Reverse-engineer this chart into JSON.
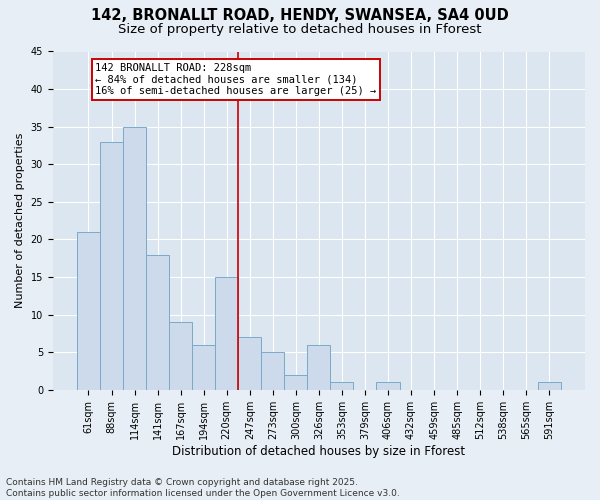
{
  "title1": "142, BRONALLT ROAD, HENDY, SWANSEA, SA4 0UD",
  "title2": "Size of property relative to detached houses in Fforest",
  "xlabel": "Distribution of detached houses by size in Fforest",
  "ylabel": "Number of detached properties",
  "categories": [
    "61sqm",
    "88sqm",
    "114sqm",
    "141sqm",
    "167sqm",
    "194sqm",
    "220sqm",
    "247sqm",
    "273sqm",
    "300sqm",
    "326sqm",
    "353sqm",
    "379sqm",
    "406sqm",
    "432sqm",
    "459sqm",
    "485sqm",
    "512sqm",
    "538sqm",
    "565sqm",
    "591sqm"
  ],
  "values": [
    21,
    33,
    35,
    18,
    9,
    6,
    15,
    7,
    5,
    2,
    6,
    1,
    0,
    1,
    0,
    0,
    0,
    0,
    0,
    0,
    1
  ],
  "bar_color": "#ccdaeb",
  "bar_edge_color": "#7aaac8",
  "vline_x_index": 6.5,
  "vline_color": "#cc0000",
  "annotation_text": "142 BRONALLT ROAD: 228sqm\n← 84% of detached houses are smaller (134)\n16% of semi-detached houses are larger (25) →",
  "annotation_box_facecolor": "#ffffff",
  "annotation_box_edgecolor": "#cc0000",
  "bg_color": "#e8eef5",
  "plot_bg_color": "#dce6f0",
  "grid_color": "#ffffff",
  "ylim": [
    0,
    45
  ],
  "yticks": [
    0,
    5,
    10,
    15,
    20,
    25,
    30,
    35,
    40,
    45
  ],
  "footer": "Contains HM Land Registry data © Crown copyright and database right 2025.\nContains public sector information licensed under the Open Government Licence v3.0.",
  "title1_fontsize": 10.5,
  "title2_fontsize": 9.5,
  "ylabel_fontsize": 8,
  "xlabel_fontsize": 8.5,
  "tick_fontsize": 7,
  "annotation_fontsize": 7.5,
  "footer_fontsize": 6.5
}
